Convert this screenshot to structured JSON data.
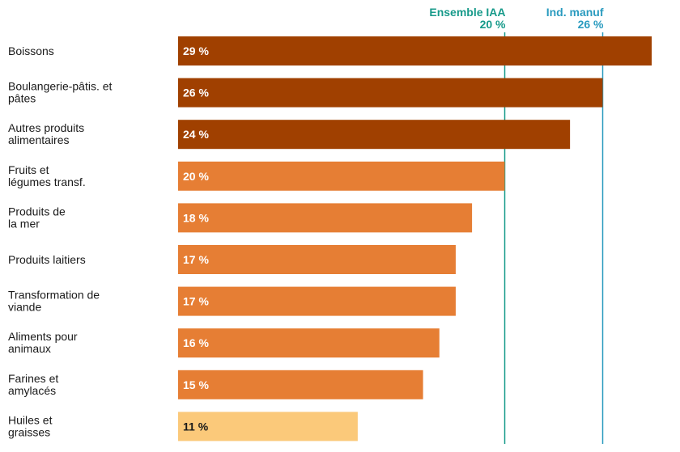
{
  "chart_data": {
    "type": "bar",
    "orientation": "horizontal",
    "categories": [
      [
        "Boissons"
      ],
      [
        "Boulangerie-pâtis. et",
        "pâtes"
      ],
      [
        "Autres produits",
        "alimentaires"
      ],
      [
        "Fruits et",
        "légumes transf."
      ],
      [
        "Produits de",
        "la mer"
      ],
      [
        "Produits laitiers"
      ],
      [
        "Transformation de",
        "viande"
      ],
      [
        "Aliments pour",
        "animaux"
      ],
      [
        "Farines et",
        "amylacés"
      ],
      [
        "Huiles et",
        "graisses"
      ]
    ],
    "values": [
      29,
      26,
      24,
      20,
      18,
      17,
      17,
      16,
      15,
      11
    ],
    "data_labels": [
      "29 %",
      "26 %",
      "24 %",
      "20 %",
      "18 %",
      "17 %",
      "17 %",
      "16 %",
      "15 %",
      "11 %"
    ],
    "colors": [
      "#a04000",
      "#a04000",
      "#a04000",
      "#e67e34",
      "#e67e34",
      "#e67e34",
      "#e67e34",
      "#e67e34",
      "#e67e34",
      "#fbc97a"
    ],
    "label_colors": [
      "#ffffff",
      "#ffffff",
      "#ffffff",
      "#ffffff",
      "#ffffff",
      "#ffffff",
      "#ffffff",
      "#ffffff",
      "#ffffff",
      "#1a1a1a"
    ],
    "xlim": [
      0,
      29
    ],
    "reference_lines": [
      {
        "name": "Ensemble IAA",
        "value": 20,
        "label": "20 %",
        "color": "#179a8a"
      },
      {
        "name": "Ind. manuf",
        "value": 26,
        "label": "26 %",
        "color": "#2a9bbf"
      }
    ]
  }
}
